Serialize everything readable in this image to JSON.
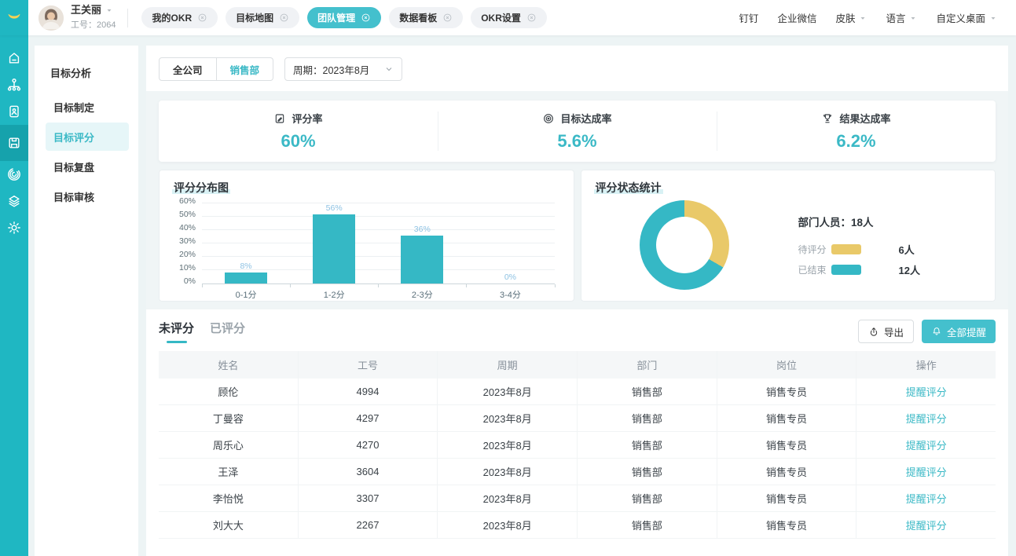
{
  "colors": {
    "primary": "#35b8c5",
    "accent_yellow": "#e9c969",
    "link": "#3bb9c6",
    "rail_bg": "#1fb7c2"
  },
  "header": {
    "user": {
      "name": "王关丽",
      "employee_id": "工号：2064"
    },
    "tabs": [
      {
        "label": "我的OKR",
        "active": false
      },
      {
        "label": "目标地图",
        "active": false
      },
      {
        "label": "团队管理",
        "active": true
      },
      {
        "label": "数据看板",
        "active": false
      },
      {
        "label": "OKR设置",
        "active": false
      }
    ],
    "right_menu": [
      {
        "label": "钉钉",
        "caret": false
      },
      {
        "label": "企业微信",
        "caret": false
      },
      {
        "label": "皮肤",
        "caret": true
      },
      {
        "label": "语言",
        "caret": true
      },
      {
        "label": "自定义桌面",
        "caret": true
      }
    ]
  },
  "rail": {
    "icons": [
      "home-icon",
      "org-icon",
      "report-icon",
      "workspace-icon",
      "fingerprint-icon",
      "layers-icon",
      "gear-icon"
    ],
    "active_index": 3
  },
  "sidebar": {
    "title": "目标分析",
    "items": [
      {
        "label": "目标制定",
        "active": false
      },
      {
        "label": "目标评分",
        "active": true
      },
      {
        "label": "目标复盘",
        "active": false
      },
      {
        "label": "目标审核",
        "active": false
      }
    ]
  },
  "filters": {
    "scope_options": [
      {
        "label": "全公司",
        "active": false
      },
      {
        "label": "销售部",
        "active": true
      }
    ],
    "period": "周期：2023年8月"
  },
  "stats": {
    "items": [
      {
        "icon": "rate-icon",
        "label": "评分率",
        "value": "60%"
      },
      {
        "icon": "target-icon",
        "label": "目标达成率",
        "value": "5.6%"
      },
      {
        "icon": "trophy-icon",
        "label": "结果达成率",
        "value": "6.2%"
      }
    ]
  },
  "chart_data": [
    {
      "type": "bar",
      "title": "评分分布图",
      "categories": [
        "0-1分",
        "1-2分",
        "2-3分",
        "3-4分"
      ],
      "values": [
        8,
        56,
        36,
        0
      ],
      "value_labels": [
        "8%",
        "56%",
        "36%",
        "0%"
      ],
      "ylim": [
        0,
        60
      ],
      "ytick_step": 10,
      "ytick_labels": [
        "0%",
        "10%",
        "20%",
        "30%",
        "40%",
        "50%",
        "60%"
      ],
      "bar_color": "#35b8c5",
      "grid": true,
      "legend": "none"
    },
    {
      "type": "donut",
      "title": "评分状态统计",
      "summary_label": "部门人员：",
      "summary_value": "18人",
      "segments": [
        {
          "label": "待评分",
          "value": 6,
          "display": "6人",
          "color": "#e9c969"
        },
        {
          "label": "已结束",
          "value": 12,
          "display": "12人",
          "color": "#35b8c5"
        }
      ],
      "legend": "right"
    }
  ],
  "table": {
    "tabs": [
      {
        "label": "未评分",
        "active": true
      },
      {
        "label": "已评分",
        "active": false
      }
    ],
    "export_label": "导出",
    "remind_all_label": "全部提醒",
    "columns": [
      "姓名",
      "工号",
      "周期",
      "部门",
      "岗位",
      "操作"
    ],
    "rows": [
      [
        "顾伦",
        "4994",
        "2023年8月",
        "销售部",
        "销售专员",
        "提醒评分"
      ],
      [
        "丁曼容",
        "4297",
        "2023年8月",
        "销售部",
        "销售专员",
        "提醒评分"
      ],
      [
        "周乐心",
        "4270",
        "2023年8月",
        "销售部",
        "销售专员",
        "提醒评分"
      ],
      [
        "王泽",
        "3604",
        "2023年8月",
        "销售部",
        "销售专员",
        "提醒评分"
      ],
      [
        "李怡悦",
        "3307",
        "2023年8月",
        "销售部",
        "销售专员",
        "提醒评分"
      ],
      [
        "刘大大",
        "2267",
        "2023年8月",
        "销售部",
        "销售专员",
        "提醒评分"
      ]
    ]
  }
}
